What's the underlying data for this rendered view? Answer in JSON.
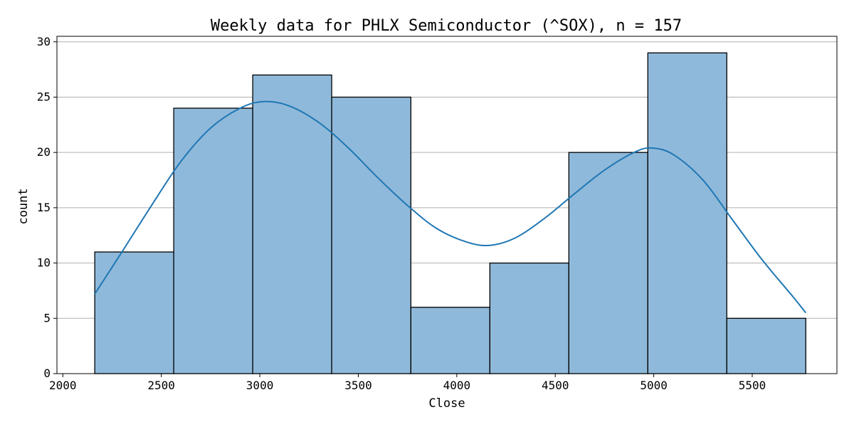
{
  "chart_data": {
    "type": "bar",
    "title": "Weekly data for PHLX Semiconductor (^SOX), n = 157",
    "xlabel": "Close",
    "ylabel": "count",
    "xlim": [
      1970,
      5930
    ],
    "ylim": [
      0,
      30.5
    ],
    "xticks": [
      2000,
      2500,
      3000,
      3500,
      4000,
      4500,
      5000,
      5500
    ],
    "yticks": [
      0,
      5,
      10,
      15,
      20,
      25,
      30
    ],
    "grid": "horizontal",
    "bin_edges": [
      2162,
      2563,
      2964,
      3365,
      3767,
      4168,
      4569,
      4970,
      5371,
      5772
    ],
    "values": [
      11,
      24,
      27,
      25,
      6,
      10,
      20,
      29,
      5
    ],
    "kde": {
      "x": [
        2162,
        2300,
        2450,
        2600,
        2750,
        2900,
        3020,
        3150,
        3300,
        3450,
        3600,
        3750,
        3900,
        4050,
        4168,
        4300,
        4450,
        4600,
        4750,
        4900,
        4990,
        5100,
        5250,
        5400,
        5550,
        5700,
        5772
      ],
      "y": [
        7.2,
        11.0,
        15.2,
        19.2,
        22.2,
        24.0,
        24.6,
        24.2,
        22.7,
        20.4,
        17.7,
        15.2,
        13.1,
        11.9,
        11.6,
        12.3,
        14.1,
        16.3,
        18.4,
        20.0,
        20.4,
        19.8,
        17.5,
        13.9,
        10.3,
        7.1,
        5.5
      ]
    },
    "colors": {
      "bar_fill": "#8fb9da",
      "bar_edge": "#000000",
      "kde_line": "#1f77b4",
      "grid": "#b0b0b0"
    }
  }
}
